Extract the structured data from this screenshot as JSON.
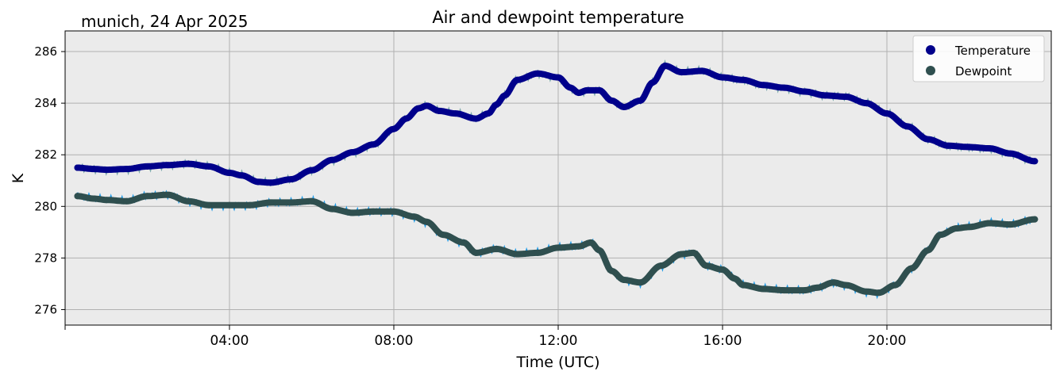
{
  "header": {
    "location_label": "munich, 24 Apr 2025"
  },
  "chart_data": {
    "type": "line",
    "title": "Air and dewpoint temperature",
    "xlabel": "Time (UTC)",
    "ylabel": "K",
    "x_unit": "hours UTC, 24 Apr 2025",
    "xlim": [
      0,
      24.0
    ],
    "ylim": [
      275.4,
      286.8
    ],
    "x_ticks": [
      {
        "value": 0,
        "label": ""
      },
      {
        "value": 4,
        "label": "04:00"
      },
      {
        "value": 8,
        "label": "08:00"
      },
      {
        "value": 12,
        "label": "12:00"
      },
      {
        "value": 16,
        "label": "16:00"
      },
      {
        "value": 20,
        "label": "20:00"
      },
      {
        "value": 24,
        "label": ""
      }
    ],
    "y_ticks": [
      276,
      278,
      280,
      282,
      284,
      286
    ],
    "grid": true,
    "legend_position": "top-right",
    "background": "#ebebeb",
    "series": [
      {
        "name": "Temperature",
        "color": "#00008b",
        "raw_color": "#7aa8ac",
        "x": [
          0.3,
          0.7,
          1.0,
          1.5,
          2.0,
          2.5,
          3.0,
          3.5,
          4.0,
          4.3,
          4.7,
          5.0,
          5.5,
          6.0,
          6.5,
          7.0,
          7.5,
          8.0,
          8.3,
          8.6,
          8.8,
          9.1,
          9.5,
          10.0,
          10.3,
          10.5,
          10.7,
          11.0,
          11.5,
          12.0,
          12.3,
          12.5,
          12.7,
          13.0,
          13.3,
          13.6,
          14.0,
          14.3,
          14.6,
          15.0,
          15.5,
          16.0,
          16.5,
          17.0,
          17.5,
          18.0,
          18.5,
          19.0,
          19.5,
          20.0,
          20.5,
          21.0,
          21.5,
          22.0,
          22.5,
          23.0,
          23.6
        ],
        "values": [
          281.5,
          281.45,
          281.42,
          281.45,
          281.55,
          281.6,
          281.65,
          281.55,
          281.3,
          281.2,
          280.95,
          280.92,
          281.05,
          281.4,
          281.8,
          282.1,
          282.4,
          283.0,
          283.4,
          283.8,
          283.9,
          283.7,
          283.6,
          283.4,
          283.6,
          283.95,
          284.3,
          284.9,
          285.15,
          285.0,
          284.6,
          284.4,
          284.5,
          284.5,
          284.1,
          283.85,
          284.1,
          284.8,
          285.45,
          285.2,
          285.25,
          285.0,
          284.9,
          284.7,
          284.6,
          284.45,
          284.3,
          284.25,
          284.0,
          283.6,
          283.1,
          282.6,
          282.35,
          282.3,
          282.25,
          282.05,
          281.75
        ]
      },
      {
        "name": "Dewpoint",
        "color": "#2f4f4f",
        "raw_color": "#1e9be8",
        "x": [
          0.3,
          0.7,
          1.0,
          1.5,
          2.0,
          2.5,
          3.0,
          3.5,
          4.0,
          4.5,
          5.0,
          5.5,
          6.0,
          6.5,
          7.0,
          7.5,
          8.0,
          8.5,
          8.8,
          9.2,
          9.7,
          10.0,
          10.5,
          11.0,
          11.5,
          12.0,
          12.5,
          12.8,
          13.0,
          13.3,
          13.6,
          14.0,
          14.5,
          15.0,
          15.3,
          15.6,
          16.0,
          16.3,
          16.5,
          17.0,
          17.5,
          18.0,
          18.3,
          18.7,
          19.0,
          19.5,
          19.8,
          20.2,
          20.6,
          21.0,
          21.3,
          21.7,
          22.0,
          22.5,
          23.0,
          23.6
        ],
        "values": [
          280.4,
          280.3,
          280.25,
          280.2,
          280.4,
          280.45,
          280.2,
          280.05,
          280.05,
          280.05,
          280.15,
          280.15,
          280.2,
          279.9,
          279.75,
          279.8,
          279.8,
          279.6,
          279.4,
          278.9,
          278.6,
          278.2,
          278.35,
          278.15,
          278.2,
          278.4,
          278.45,
          278.6,
          278.3,
          277.5,
          277.15,
          277.05,
          277.7,
          278.15,
          278.2,
          277.7,
          277.55,
          277.2,
          276.95,
          276.8,
          276.75,
          276.75,
          276.85,
          277.05,
          276.95,
          276.7,
          276.65,
          276.95,
          277.6,
          278.3,
          278.9,
          279.15,
          279.2,
          279.35,
          279.3,
          279.5
        ]
      }
    ]
  }
}
